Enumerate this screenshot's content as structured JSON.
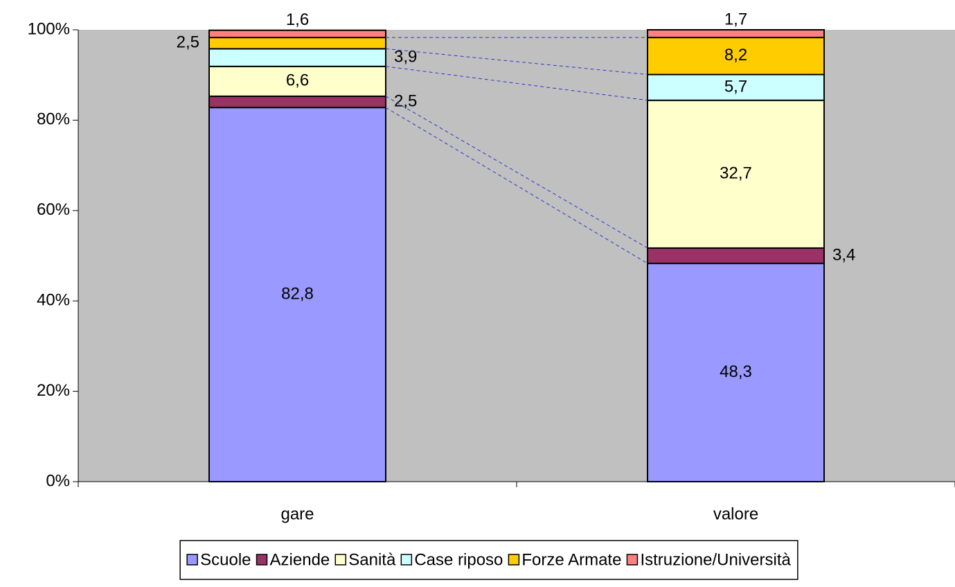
{
  "chart_data": {
    "type": "stacked_bar",
    "categories": [
      "gare",
      "valore"
    ],
    "series": [
      {
        "name": "Scuole",
        "color": "#9999ff",
        "values": [
          82.8,
          48.3
        ],
        "value_labels": [
          "82,8",
          "48,3"
        ]
      },
      {
        "name": "Aziende",
        "color": "#993366",
        "values": [
          2.5,
          3.4
        ],
        "value_labels": [
          "2,5",
          "3,4"
        ]
      },
      {
        "name": "Sanità",
        "color": "#ffffcc",
        "values": [
          6.6,
          32.7
        ],
        "value_labels": [
          "6,6",
          "32,7"
        ]
      },
      {
        "name": "Case riposo",
        "color": "#ccffff",
        "values": [
          3.9,
          5.7
        ],
        "value_labels": [
          "3,9",
          "5,7"
        ]
      },
      {
        "name": "Forze Armate",
        "color": "#ffcc00",
        "values": [
          2.5,
          8.2
        ],
        "value_labels": [
          "2,5",
          "8,2"
        ]
      },
      {
        "name": "Istruzione/Università",
        "color": "#ff8080",
        "values": [
          1.6,
          1.7
        ],
        "value_labels": [
          "1,6",
          "1,7"
        ]
      }
    ],
    "ylim": [
      0,
      100
    ],
    "yticks": [
      {
        "value": 0,
        "label": "0%"
      },
      {
        "value": 20,
        "label": "20%"
      },
      {
        "value": 40,
        "label": "40%"
      },
      {
        "value": 60,
        "label": "60%"
      },
      {
        "value": 80,
        "label": "80%"
      },
      {
        "value": 100,
        "label": "100%"
      }
    ],
    "plot_background": "#c0c0c0",
    "legend": "bottom"
  }
}
